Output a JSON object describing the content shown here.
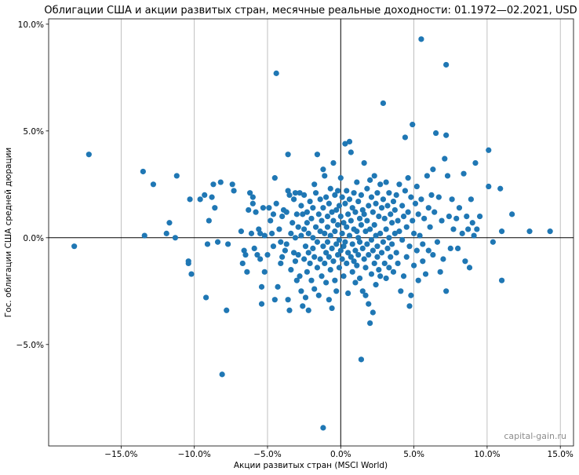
{
  "chart_data": {
    "type": "scatter",
    "title": "Облигации США и акции развитых стран, месячные реальные доходности: 01.1972—02.2021, USD",
    "xlabel": "Акции развитых стран (MSCI World)",
    "ylabel": "Гос. облигации США средней дюрации",
    "xlim": [
      -0.1995,
      0.159
    ],
    "ylim": [
      -0.0975,
      0.1025
    ],
    "x_ticks": [
      -0.15,
      -0.1,
      -0.05,
      0.0,
      0.05,
      0.1,
      0.15
    ],
    "x_tick_labels": [
      "−15.0%",
      "−10.0%",
      "−5.0%",
      "0.0%",
      "5.0%",
      "10.0%",
      "15.0%"
    ],
    "y_ticks": [
      -0.05,
      0.0,
      0.05,
      0.1
    ],
    "y_tick_labels": [
      "−5.0%",
      "0.0%",
      "5.0%",
      "10.0%"
    ],
    "grid": "vertical",
    "point_color": "#1f77b4",
    "watermark": "capital-gain.ru",
    "points": [
      [
        -0.182,
        -0.004
      ],
      [
        -0.172,
        0.039
      ],
      [
        -0.135,
        0.031
      ],
      [
        -0.128,
        0.025
      ],
      [
        -0.134,
        0.001
      ],
      [
        -0.117,
        0.007
      ],
      [
        -0.119,
        0.002
      ],
      [
        -0.112,
        0.029
      ],
      [
        -0.113,
        0.0
      ],
      [
        -0.104,
        -0.011
      ],
      [
        -0.104,
        -0.012
      ],
      [
        -0.102,
        -0.017
      ],
      [
        -0.103,
        0.018
      ],
      [
        -0.096,
        0.018
      ],
      [
        -0.093,
        0.02
      ],
      [
        -0.09,
        0.008
      ],
      [
        -0.091,
        -0.003
      ],
      [
        -0.092,
        -0.028
      ],
      [
        -0.088,
        0.019
      ],
      [
        -0.087,
        0.025
      ],
      [
        -0.086,
        0.014
      ],
      [
        -0.084,
        -0.002
      ],
      [
        -0.082,
        0.026
      ],
      [
        -0.078,
        -0.034
      ],
      [
        -0.081,
        -0.064
      ],
      [
        -0.077,
        -0.003
      ],
      [
        -0.074,
        0.025
      ],
      [
        -0.073,
        0.022
      ],
      [
        -0.068,
        0.003
      ],
      [
        -0.067,
        -0.012
      ],
      [
        -0.066,
        -0.006
      ],
      [
        -0.065,
        -0.008
      ],
      [
        -0.064,
        -0.016
      ],
      [
        -0.063,
        0.013
      ],
      [
        -0.062,
        0.021
      ],
      [
        -0.061,
        0.002
      ],
      [
        -0.06,
        0.019
      ],
      [
        -0.06,
        0.016
      ],
      [
        -0.059,
        -0.005
      ],
      [
        -0.058,
        0.012
      ],
      [
        -0.057,
        -0.008
      ],
      [
        -0.056,
        0.004
      ],
      [
        -0.055,
        0.002
      ],
      [
        -0.055,
        -0.01
      ],
      [
        -0.054,
        -0.023
      ],
      [
        -0.054,
        -0.031
      ],
      [
        -0.053,
        0.014
      ],
      [
        -0.052,
        0.001
      ],
      [
        -0.052,
        -0.016
      ],
      [
        -0.05,
        -0.008
      ],
      [
        -0.049,
        0.014
      ],
      [
        -0.048,
        0.008
      ],
      [
        -0.047,
        0.002
      ],
      [
        -0.046,
        0.011
      ],
      [
        -0.046,
        -0.004
      ],
      [
        -0.045,
        0.028
      ],
      [
        -0.045,
        -0.029
      ],
      [
        -0.044,
        0.077
      ],
      [
        -0.044,
        0.016
      ],
      [
        -0.043,
        -0.023
      ],
      [
        -0.042,
        0.004
      ],
      [
        -0.041,
        -0.002
      ],
      [
        -0.041,
        -0.012
      ],
      [
        -0.04,
        0.01
      ],
      [
        -0.04,
        -0.009
      ],
      [
        -0.039,
        0.013
      ],
      [
        -0.038,
        -0.006
      ],
      [
        -0.037,
        0.012
      ],
      [
        -0.037,
        -0.003
      ],
      [
        -0.036,
        0.039
      ],
      [
        -0.036,
        0.022
      ],
      [
        -0.036,
        -0.029
      ],
      [
        -0.035,
        0.02
      ],
      [
        -0.035,
        -0.034
      ],
      [
        -0.034,
        0.002
      ],
      [
        -0.034,
        -0.015
      ],
      [
        -0.033,
        0.007
      ],
      [
        -0.032,
        0.018
      ],
      [
        -0.032,
        -0.007
      ],
      [
        -0.031,
        0.021
      ],
      [
        -0.031,
        0.0
      ],
      [
        -0.031,
        -0.011
      ],
      [
        -0.03,
        0.011
      ],
      [
        -0.03,
        -0.02
      ],
      [
        -0.029,
        0.005
      ],
      [
        -0.029,
        -0.008
      ],
      [
        -0.028,
        0.021
      ],
      [
        -0.028,
        -0.018
      ],
      [
        -0.027,
        0.015
      ],
      [
        -0.027,
        0.001
      ],
      [
        -0.027,
        -0.025
      ],
      [
        -0.026,
        0.011
      ],
      [
        -0.026,
        -0.032
      ],
      [
        -0.025,
        0.02
      ],
      [
        -0.025,
        0.004
      ],
      [
        -0.025,
        -0.01
      ],
      [
        -0.024,
        -0.004
      ],
      [
        -0.024,
        -0.028
      ],
      [
        -0.023,
        0.012
      ],
      [
        -0.023,
        0.007
      ],
      [
        -0.023,
        -0.016
      ],
      [
        -0.022,
        0.002
      ],
      [
        -0.022,
        -0.007
      ],
      [
        -0.022,
        -0.034
      ],
      [
        -0.021,
        0.017
      ],
      [
        -0.021,
        -0.012
      ],
      [
        -0.02,
        0.009
      ],
      [
        -0.02,
        -0.02
      ],
      [
        -0.019,
        0.014
      ],
      [
        -0.019,
        0.0
      ],
      [
        -0.019,
        -0.005
      ],
      [
        -0.018,
        0.025
      ],
      [
        -0.018,
        -0.009
      ],
      [
        -0.018,
        -0.024
      ],
      [
        -0.017,
        0.021
      ],
      [
        -0.017,
        0.005
      ],
      [
        -0.016,
        -0.014
      ],
      [
        -0.016,
        0.039
      ],
      [
        -0.016,
        -0.002
      ],
      [
        -0.015,
        0.011
      ],
      [
        -0.015,
        -0.027
      ],
      [
        -0.014,
        0.018
      ],
      [
        -0.014,
        0.003
      ],
      [
        -0.014,
        -0.01
      ],
      [
        -0.013,
        0.008
      ],
      [
        -0.013,
        -0.018
      ],
      [
        -0.012,
        0.032
      ],
      [
        -0.012,
        0.014
      ],
      [
        -0.012,
        -0.004
      ],
      [
        -0.012,
        -0.089
      ],
      [
        -0.011,
        0.029
      ],
      [
        -0.011,
        0.002
      ],
      [
        -0.011,
        -0.012
      ],
      [
        -0.01,
        0.019
      ],
      [
        -0.01,
        -0.007
      ],
      [
        -0.01,
        -0.021
      ],
      [
        -0.009,
        0.01
      ],
      [
        -0.009,
        0.005
      ],
      [
        -0.009,
        -0.002
      ],
      [
        -0.008,
        0.016
      ],
      [
        -0.008,
        -0.009
      ],
      [
        -0.008,
        -0.029
      ],
      [
        -0.007,
        0.023
      ],
      [
        -0.007,
        0.001
      ],
      [
        -0.007,
        -0.015
      ],
      [
        -0.006,
        0.012
      ],
      [
        -0.006,
        -0.005
      ],
      [
        -0.006,
        -0.033
      ],
      [
        -0.005,
        0.035
      ],
      [
        -0.005,
        0.008
      ],
      [
        -0.005,
        -0.011
      ],
      [
        -0.004,
        0.02
      ],
      [
        -0.004,
        0.003
      ],
      [
        -0.004,
        -0.02
      ],
      [
        -0.003,
        0.013
      ],
      [
        -0.003,
        -0.003
      ],
      [
        -0.003,
        -0.025
      ],
      [
        -0.002,
        0.022
      ],
      [
        -0.002,
        0.006
      ],
      [
        -0.002,
        -0.008
      ],
      [
        -0.001,
        0.015
      ],
      [
        -0.001,
        -0.001
      ],
      [
        -0.001,
        -0.014
      ],
      [
        0.0,
        0.028
      ],
      [
        0.0,
        0.01
      ],
      [
        0.0,
        -0.006
      ],
      [
        0.001,
        0.019
      ],
      [
        0.001,
        0.002
      ],
      [
        0.001,
        -0.01
      ],
      [
        0.002,
        0.007
      ],
      [
        0.002,
        -0.004
      ],
      [
        0.002,
        -0.018
      ],
      [
        0.003,
        0.044
      ],
      [
        0.003,
        0.016
      ],
      [
        0.003,
        -0.002
      ],
      [
        0.004,
        0.022
      ],
      [
        0.004,
        0.005
      ],
      [
        0.004,
        -0.012
      ],
      [
        0.005,
        0.011
      ],
      [
        0.005,
        -0.007
      ],
      [
        0.005,
        -0.026
      ],
      [
        0.006,
        0.045
      ],
      [
        0.006,
        0.018
      ],
      [
        0.006,
        0.001
      ],
      [
        0.007,
        0.04
      ],
      [
        0.007,
        0.008
      ],
      [
        0.007,
        -0.009
      ],
      [
        0.008,
        0.014
      ],
      [
        0.008,
        -0.003
      ],
      [
        0.008,
        -0.016
      ],
      [
        0.009,
        0.021
      ],
      [
        0.009,
        0.004
      ],
      [
        0.009,
        -0.011
      ],
      [
        0.01,
        0.012
      ],
      [
        0.01,
        -0.006
      ],
      [
        0.01,
        -0.021
      ],
      [
        0.011,
        0.026
      ],
      [
        0.011,
        0.003
      ],
      [
        0.011,
        -0.013
      ],
      [
        0.012,
        0.017
      ],
      [
        0.012,
        0.0
      ],
      [
        0.012,
        -0.008
      ],
      [
        0.013,
        0.009
      ],
      [
        0.013,
        -0.002
      ],
      [
        0.013,
        -0.019
      ],
      [
        0.014,
        0.02
      ],
      [
        0.014,
        0.006
      ],
      [
        0.014,
        -0.057
      ],
      [
        0.015,
        0.013
      ],
      [
        0.015,
        -0.005
      ],
      [
        0.015,
        -0.025
      ],
      [
        0.016,
        0.035
      ],
      [
        0.016,
        0.011
      ],
      [
        0.016,
        -0.01
      ],
      [
        0.017,
        0.003
      ],
      [
        0.017,
        -0.014
      ],
      [
        0.017,
        -0.027
      ],
      [
        0.018,
        0.023
      ],
      [
        0.018,
        0.008
      ],
      [
        0.018,
        -0.003
      ],
      [
        0.019,
        0.015
      ],
      [
        0.019,
        -0.008
      ],
      [
        0.019,
        -0.031
      ],
      [
        0.02,
        0.027
      ],
      [
        0.02,
        0.004
      ],
      [
        0.02,
        -0.04
      ],
      [
        0.021,
        0.019
      ],
      [
        0.021,
        -0.001
      ],
      [
        0.021,
        -0.017
      ],
      [
        0.022,
        0.012
      ],
      [
        0.022,
        -0.006
      ],
      [
        0.022,
        -0.035
      ],
      [
        0.023,
        0.029
      ],
      [
        0.023,
        0.006
      ],
      [
        0.023,
        -0.012
      ],
      [
        0.024,
        0.016
      ],
      [
        0.024,
        0.001
      ],
      [
        0.024,
        -0.022
      ],
      [
        0.025,
        0.021
      ],
      [
        0.025,
        -0.004
      ],
      [
        0.025,
        -0.009
      ],
      [
        0.026,
        0.01
      ],
      [
        0.026,
        -0.015
      ],
      [
        0.027,
        0.025
      ],
      [
        0.027,
        0.002
      ],
      [
        0.027,
        -0.018
      ],
      [
        0.028,
        0.014
      ],
      [
        0.028,
        -0.007
      ],
      [
        0.029,
        0.063
      ],
      [
        0.029,
        0.018
      ],
      [
        0.029,
        -0.002
      ],
      [
        0.03,
        0.009
      ],
      [
        0.03,
        -0.012
      ],
      [
        0.031,
        0.026
      ],
      [
        0.031,
        0.004
      ],
      [
        0.031,
        -0.019
      ],
      [
        0.032,
        0.015
      ],
      [
        0.032,
        -0.005
      ],
      [
        0.033,
        0.021
      ],
      [
        0.033,
        0.0
      ],
      [
        0.033,
        -0.014
      ],
      [
        0.034,
        0.011
      ],
      [
        0.034,
        -0.009
      ],
      [
        0.035,
        0.007
      ],
      [
        0.035,
        -0.003
      ],
      [
        0.036,
        0.017
      ],
      [
        0.036,
        -0.016
      ],
      [
        0.037,
        0.013
      ],
      [
        0.037,
        0.002
      ],
      [
        0.038,
        0.02
      ],
      [
        0.038,
        -0.007
      ],
      [
        0.039,
        0.008
      ],
      [
        0.039,
        -0.012
      ],
      [
        0.04,
        0.025
      ],
      [
        0.04,
        0.003
      ],
      [
        0.041,
        -0.025
      ],
      [
        0.042,
        0.015
      ],
      [
        0.042,
        -0.001
      ],
      [
        0.043,
        0.01
      ],
      [
        0.043,
        -0.018
      ],
      [
        0.044,
        0.047
      ],
      [
        0.044,
        0.022
      ],
      [
        0.045,
        0.005
      ],
      [
        0.045,
        -0.009
      ],
      [
        0.046,
        0.028
      ],
      [
        0.046,
        0.012
      ],
      [
        0.047,
        -0.004
      ],
      [
        0.047,
        -0.032
      ],
      [
        0.048,
        0.019
      ],
      [
        0.048,
        -0.027
      ],
      [
        0.049,
        0.053
      ],
      [
        0.049,
        0.008
      ],
      [
        0.05,
        0.002
      ],
      [
        0.05,
        -0.013
      ],
      [
        0.051,
        0.016
      ],
      [
        0.052,
        0.024
      ],
      [
        0.052,
        -0.006
      ],
      [
        0.053,
        0.011
      ],
      [
        0.053,
        -0.02
      ],
      [
        0.054,
        0.001
      ],
      [
        0.055,
        0.093
      ],
      [
        0.055,
        0.018
      ],
      [
        0.056,
        -0.003
      ],
      [
        0.056,
        -0.011
      ],
      [
        0.057,
        0.009
      ],
      [
        0.058,
        -0.017
      ],
      [
        0.059,
        0.029
      ],
      [
        0.06,
        0.014
      ],
      [
        0.06,
        -0.006
      ],
      [
        0.061,
        0.005
      ],
      [
        0.062,
        0.02
      ],
      [
        0.063,
        0.032
      ],
      [
        0.063,
        -0.008
      ],
      [
        0.064,
        0.012
      ],
      [
        0.065,
        0.049
      ],
      [
        0.066,
        -0.002
      ],
      [
        0.067,
        0.019
      ],
      [
        0.068,
        -0.016
      ],
      [
        0.069,
        0.008
      ],
      [
        0.07,
        -0.01
      ],
      [
        0.071,
        0.037
      ],
      [
        0.072,
        0.081
      ],
      [
        0.072,
        0.048
      ],
      [
        0.072,
        -0.025
      ],
      [
        0.073,
        0.029
      ],
      [
        0.074,
        0.01
      ],
      [
        0.075,
        -0.005
      ],
      [
        0.076,
        0.018
      ],
      [
        0.077,
        0.004
      ],
      [
        0.079,
        0.009
      ],
      [
        0.08,
        -0.005
      ],
      [
        0.081,
        0.014
      ],
      [
        0.083,
        0.002
      ],
      [
        0.084,
        0.03
      ],
      [
        0.085,
        -0.011
      ],
      [
        0.086,
        0.01
      ],
      [
        0.087,
        0.004
      ],
      [
        0.088,
        -0.014
      ],
      [
        0.089,
        0.018
      ],
      [
        0.09,
        0.007
      ],
      [
        0.091,
        0.001
      ],
      [
        0.092,
        0.035
      ],
      [
        0.093,
        0.004
      ],
      [
        0.095,
        0.01
      ],
      [
        0.101,
        0.041
      ],
      [
        0.101,
        0.024
      ],
      [
        0.104,
        -0.002
      ],
      [
        0.109,
        0.023
      ],
      [
        0.11,
        0.003
      ],
      [
        0.11,
        -0.02
      ],
      [
        0.117,
        0.011
      ],
      [
        0.129,
        0.003
      ],
      [
        0.143,
        0.003
      ]
    ]
  }
}
